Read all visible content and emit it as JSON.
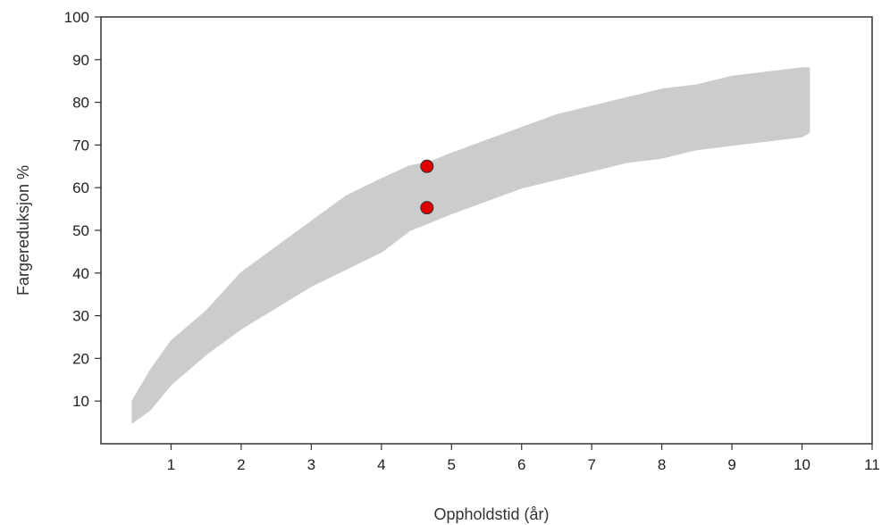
{
  "chart_data": {
    "type": "area",
    "xlabel": "Oppholdstid (år)",
    "ylabel": "Fargereduksjon  %",
    "xlim": [
      0,
      11
    ],
    "ylim": [
      0,
      100
    ],
    "x_ticks": [
      1,
      2,
      3,
      4,
      5,
      6,
      7,
      8,
      9,
      10,
      11
    ],
    "y_ticks": [
      10,
      20,
      30,
      40,
      50,
      60,
      70,
      80,
      90,
      100
    ],
    "grid": false,
    "band": {
      "x": [
        0.45,
        0.7,
        1.0,
        1.5,
        2.0,
        2.5,
        3.0,
        3.5,
        4.0,
        4.4,
        4.7,
        5.0,
        5.5,
        6.0,
        6.5,
        7.0,
        7.5,
        8.0,
        8.5,
        9.0,
        9.5,
        10.0,
        10.1
      ],
      "lower": [
        5,
        8,
        14,
        21,
        27,
        32,
        37,
        41,
        45,
        50,
        52,
        54,
        57,
        60,
        62,
        64,
        66,
        67,
        69,
        70,
        71,
        72,
        73
      ],
      "upper": [
        10,
        17,
        24,
        31,
        40,
        46,
        52,
        58,
        62,
        65,
        66,
        68,
        71,
        74,
        77,
        79,
        81,
        83,
        84,
        86,
        87,
        88,
        88
      ],
      "color": "#cccccc"
    },
    "points": {
      "x": [
        4.65,
        4.65
      ],
      "y": [
        65,
        55.3
      ],
      "color": "#e00000",
      "edge_color": "#333333"
    }
  }
}
